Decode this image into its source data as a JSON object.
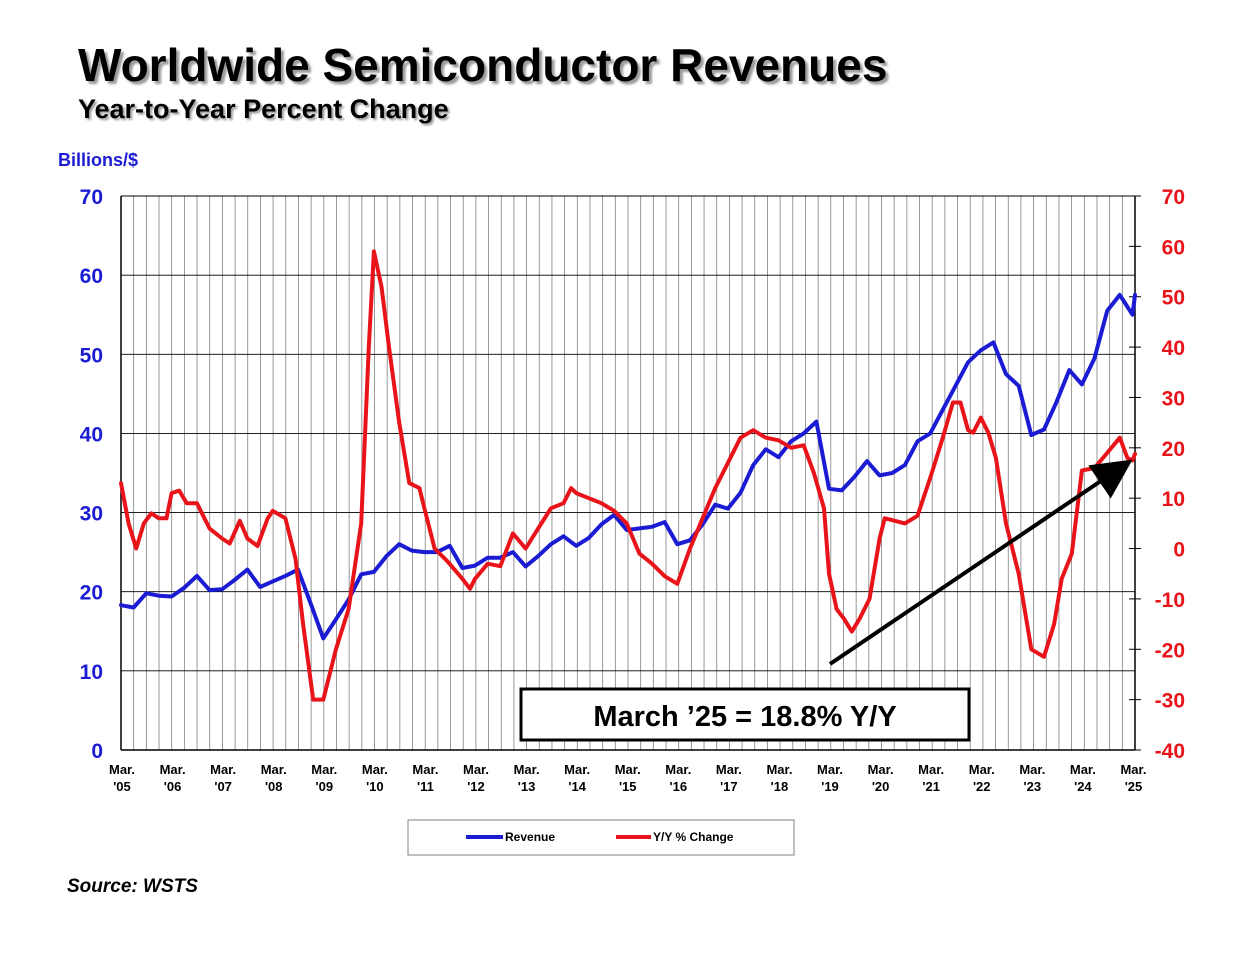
{
  "header": {
    "title": "Worldwide Semiconductor Revenues",
    "subtitle": "Year-to-Year Percent Change"
  },
  "units_label": "Billions/$",
  "source": "Source: WSTS",
  "annotation": "March ’25 = 18.8% Y/Y",
  "colors": {
    "revenue": "#1b1bd4",
    "yoy": "#e8141a",
    "grid": "#808080",
    "arrow": "#000000"
  },
  "chart_data": {
    "type": "line",
    "x_labels": [
      [
        "Mar.",
        "'05"
      ],
      [
        "Mar.",
        "'06"
      ],
      [
        "Mar.",
        "'07"
      ],
      [
        "Mar.",
        "'08"
      ],
      [
        "Mar.",
        "'09"
      ],
      [
        "Mar.",
        "'10"
      ],
      [
        "Mar.",
        "'11"
      ],
      [
        "Mar.",
        "'12"
      ],
      [
        "Mar.",
        "'13"
      ],
      [
        "Mar.",
        "'14"
      ],
      [
        "Mar.",
        "'15"
      ],
      [
        "Mar.",
        "'16"
      ],
      [
        "Mar.",
        "'17"
      ],
      [
        "Mar.",
        "'18"
      ],
      [
        "Mar.",
        "'19"
      ],
      [
        "Mar.",
        "'20"
      ],
      [
        "Mar.",
        "'21"
      ],
      [
        "Mar.",
        "'22"
      ],
      [
        "Mar.",
        "'23"
      ],
      [
        "Mar.",
        "'24"
      ],
      [
        "Mar.",
        "'25"
      ]
    ],
    "y_left": {
      "label": "Billions/$",
      "min": 0,
      "max": 70,
      "ticks": [
        0,
        10,
        20,
        30,
        40,
        50,
        60,
        70
      ]
    },
    "y_right": {
      "min": -40,
      "max": 70,
      "ticks": [
        -40,
        -30,
        -20,
        -10,
        0,
        10,
        20,
        30,
        40,
        50,
        60,
        70
      ]
    },
    "grid": true,
    "legend_position": "bottom",
    "series": [
      {
        "name": "Revenue",
        "axis": "left",
        "points": [
          [
            2005.0,
            18.3
          ],
          [
            2005.25,
            18.0
          ],
          [
            2005.5,
            19.8
          ],
          [
            2005.75,
            19.5
          ],
          [
            2006.0,
            19.4
          ],
          [
            2006.25,
            20.5
          ],
          [
            2006.5,
            22.0
          ],
          [
            2006.75,
            20.2
          ],
          [
            2007.0,
            20.3
          ],
          [
            2007.25,
            21.5
          ],
          [
            2007.5,
            22.8
          ],
          [
            2007.75,
            20.6
          ],
          [
            2008.0,
            21.3
          ],
          [
            2008.25,
            22.0
          ],
          [
            2008.5,
            22.8
          ],
          [
            2008.75,
            18.5
          ],
          [
            2009.0,
            14.1
          ],
          [
            2009.25,
            16.5
          ],
          [
            2009.5,
            19.0
          ],
          [
            2009.75,
            22.2
          ],
          [
            2010.0,
            22.5
          ],
          [
            2010.25,
            24.5
          ],
          [
            2010.5,
            26.0
          ],
          [
            2010.75,
            25.2
          ],
          [
            2011.0,
            25.0
          ],
          [
            2011.25,
            25.0
          ],
          [
            2011.5,
            25.8
          ],
          [
            2011.75,
            23.0
          ],
          [
            2012.0,
            23.3
          ],
          [
            2012.25,
            24.3
          ],
          [
            2012.5,
            24.3
          ],
          [
            2012.75,
            25.0
          ],
          [
            2013.0,
            23.2
          ],
          [
            2013.25,
            24.5
          ],
          [
            2013.5,
            26.0
          ],
          [
            2013.75,
            27.0
          ],
          [
            2014.0,
            25.8
          ],
          [
            2014.25,
            26.8
          ],
          [
            2014.5,
            28.5
          ],
          [
            2014.75,
            29.7
          ],
          [
            2015.0,
            27.8
          ],
          [
            2015.25,
            28.0
          ],
          [
            2015.5,
            28.2
          ],
          [
            2015.75,
            28.8
          ],
          [
            2016.0,
            26.0
          ],
          [
            2016.25,
            26.5
          ],
          [
            2016.5,
            28.5
          ],
          [
            2016.75,
            31.0
          ],
          [
            2017.0,
            30.5
          ],
          [
            2017.25,
            32.5
          ],
          [
            2017.5,
            36.0
          ],
          [
            2017.75,
            38.0
          ],
          [
            2018.0,
            37.0
          ],
          [
            2018.25,
            39.0
          ],
          [
            2018.5,
            40.0
          ],
          [
            2018.75,
            41.5
          ],
          [
            2019.0,
            33.0
          ],
          [
            2019.25,
            32.8
          ],
          [
            2019.5,
            34.5
          ],
          [
            2019.75,
            36.5
          ],
          [
            2020.0,
            34.7
          ],
          [
            2020.25,
            35.0
          ],
          [
            2020.5,
            36.0
          ],
          [
            2020.75,
            39.0
          ],
          [
            2021.0,
            40.0
          ],
          [
            2021.25,
            43.0
          ],
          [
            2021.5,
            46.0
          ],
          [
            2021.75,
            49.0
          ],
          [
            2022.0,
            50.5
          ],
          [
            2022.25,
            51.5
          ],
          [
            2022.5,
            47.5
          ],
          [
            2022.75,
            46.0
          ],
          [
            2023.0,
            39.8
          ],
          [
            2023.25,
            40.5
          ],
          [
            2023.5,
            44.0
          ],
          [
            2023.75,
            48.0
          ],
          [
            2024.0,
            46.2
          ],
          [
            2024.25,
            49.5
          ],
          [
            2024.5,
            55.5
          ],
          [
            2024.75,
            57.5
          ],
          [
            2025.0,
            55.0
          ],
          [
            2025.05,
            57.5
          ]
        ]
      },
      {
        "name": "Y/Y % Change",
        "axis": "right",
        "points": [
          [
            2005.0,
            13.0
          ],
          [
            2005.15,
            5.0
          ],
          [
            2005.3,
            0.0
          ],
          [
            2005.45,
            5.0
          ],
          [
            2005.6,
            7.0
          ],
          [
            2005.75,
            6.0
          ],
          [
            2005.9,
            6.0
          ],
          [
            2006.0,
            11.0
          ],
          [
            2006.15,
            11.5
          ],
          [
            2006.3,
            9.0
          ],
          [
            2006.5,
            9.0
          ],
          [
            2006.75,
            4.0
          ],
          [
            2007.0,
            2.0
          ],
          [
            2007.15,
            1.0
          ],
          [
            2007.35,
            5.5
          ],
          [
            2007.5,
            2.0
          ],
          [
            2007.7,
            0.5
          ],
          [
            2007.9,
            6.0
          ],
          [
            2008.0,
            7.5
          ],
          [
            2008.25,
            6.0
          ],
          [
            2008.45,
            -2.0
          ],
          [
            2008.6,
            -15.0
          ],
          [
            2008.8,
            -30.0
          ],
          [
            2009.0,
            -30.0
          ],
          [
            2009.25,
            -20.0
          ],
          [
            2009.5,
            -12.0
          ],
          [
            2009.75,
            5.0
          ],
          [
            2009.9,
            40.0
          ],
          [
            2010.0,
            59.0
          ],
          [
            2010.15,
            52.0
          ],
          [
            2010.3,
            40.0
          ],
          [
            2010.5,
            25.0
          ],
          [
            2010.7,
            13.0
          ],
          [
            2010.9,
            12.0
          ],
          [
            2011.0,
            8.0
          ],
          [
            2011.2,
            0.0
          ],
          [
            2011.45,
            -2.5
          ],
          [
            2011.75,
            -6.0
          ],
          [
            2011.9,
            -8.0
          ],
          [
            2012.0,
            -6.0
          ],
          [
            2012.25,
            -3.0
          ],
          [
            2012.5,
            -3.5
          ],
          [
            2012.75,
            3.0
          ],
          [
            2013.0,
            0.0
          ],
          [
            2013.25,
            4.0
          ],
          [
            2013.5,
            8.0
          ],
          [
            2013.75,
            9.0
          ],
          [
            2013.9,
            12.0
          ],
          [
            2014.0,
            11.0
          ],
          [
            2014.25,
            10.0
          ],
          [
            2014.5,
            9.0
          ],
          [
            2014.75,
            7.5
          ],
          [
            2015.0,
            5.0
          ],
          [
            2015.25,
            -1.0
          ],
          [
            2015.5,
            -3.0
          ],
          [
            2015.75,
            -5.5
          ],
          [
            2016.0,
            -7.0
          ],
          [
            2016.25,
            0.0
          ],
          [
            2016.5,
            6.0
          ],
          [
            2016.75,
            12.0
          ],
          [
            2017.0,
            17.0
          ],
          [
            2017.25,
            22.0
          ],
          [
            2017.5,
            23.5
          ],
          [
            2017.75,
            22.0
          ],
          [
            2018.0,
            21.5
          ],
          [
            2018.25,
            20.0
          ],
          [
            2018.5,
            20.5
          ],
          [
            2018.7,
            15.0
          ],
          [
            2018.9,
            8.0
          ],
          [
            2019.0,
            -5.0
          ],
          [
            2019.15,
            -12.0
          ],
          [
            2019.3,
            -14.0
          ],
          [
            2019.45,
            -16.5
          ],
          [
            2019.6,
            -14.0
          ],
          [
            2019.8,
            -10.0
          ],
          [
            2020.0,
            2.0
          ],
          [
            2020.1,
            6.0
          ],
          [
            2020.3,
            5.5
          ],
          [
            2020.5,
            5.0
          ],
          [
            2020.75,
            6.5
          ],
          [
            2021.0,
            14.0
          ],
          [
            2021.25,
            22.0
          ],
          [
            2021.45,
            29.0
          ],
          [
            2021.6,
            29.0
          ],
          [
            2021.75,
            23.5
          ],
          [
            2021.85,
            23.0
          ],
          [
            2022.0,
            26.0
          ],
          [
            2022.15,
            23.0
          ],
          [
            2022.3,
            18.0
          ],
          [
            2022.5,
            5.0
          ],
          [
            2022.75,
            -5.0
          ],
          [
            2023.0,
            -20.0
          ],
          [
            2023.25,
            -21.5
          ],
          [
            2023.45,
            -15.0
          ],
          [
            2023.6,
            -6.0
          ],
          [
            2023.8,
            -1.0
          ],
          [
            2024.0,
            15.5
          ],
          [
            2024.25,
            16.0
          ],
          [
            2024.5,
            19.0
          ],
          [
            2024.75,
            22.0
          ],
          [
            2024.9,
            18.0
          ],
          [
            2025.0,
            17.5
          ],
          [
            2025.05,
            18.8
          ]
        ]
      }
    ]
  }
}
